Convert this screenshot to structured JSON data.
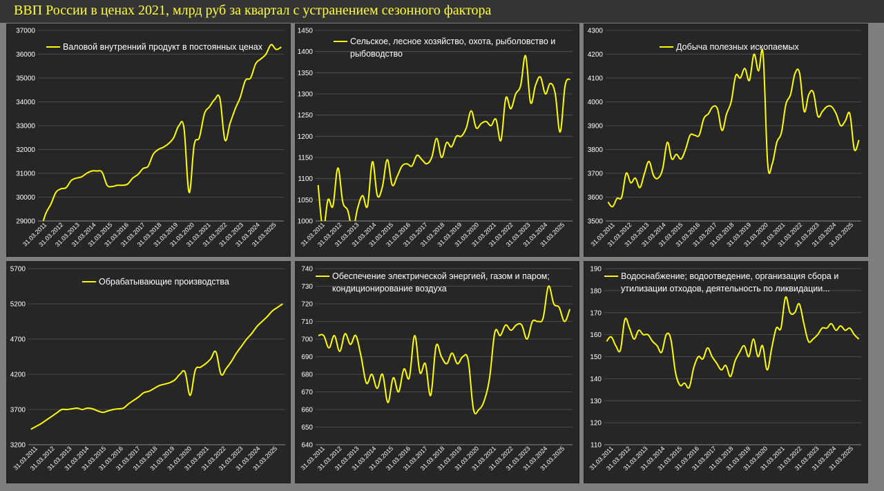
{
  "page": {
    "title": "ВВП России в ценах 2021, млрд руб за квартал с устранением сезонного фактора"
  },
  "colors": {
    "line": "#ffff00",
    "plot_bg": "#262626",
    "panel_bg": "#262626",
    "text": "#ffffff",
    "grid": "#595959",
    "page_bg": "#7f7f7f"
  },
  "x_ticks": [
    "31.03.2011",
    "31.03.2012",
    "31.03.2013",
    "31.03.2014",
    "31.03.2015",
    "31.03.2016",
    "31.03.2017",
    "31.03.2018",
    "31.03.2019",
    "31.03.2020",
    "31.03.2021",
    "31.03.2022",
    "31.03.2023",
    "31.03.2024",
    "31.03.2025"
  ],
  "chart_data": [
    {
      "type": "line",
      "legend": [
        "Валовой внутренний продукт в постоянных ценах"
      ],
      "ylim": [
        29000,
        37000
      ],
      "yticks": [
        29000,
        30000,
        31000,
        32000,
        33000,
        34000,
        35000,
        36000,
        37000
      ],
      "series": [
        {
          "values": [
            28600,
            29300,
            29700,
            30200,
            30350,
            30400,
            30700,
            30800,
            30850,
            31000,
            31100,
            31100,
            31050,
            30500,
            30450,
            30500,
            30500,
            30550,
            30800,
            30950,
            31200,
            31300,
            31800,
            32000,
            32100,
            32250,
            32500,
            33000,
            32900,
            30200,
            32200,
            32500,
            33500,
            33800,
            34100,
            34150,
            32400,
            33100,
            33700,
            34200,
            34900,
            35000,
            35600,
            35800,
            36000,
            36400,
            36200,
            36300
          ]
        }
      ]
    },
    {
      "type": "line",
      "legend": [
        "Сельское, лесное хозяйство, охота, рыболовство и",
        "рыбоводство"
      ],
      "ylim": [
        1000,
        1450
      ],
      "yticks": [
        1000,
        1050,
        1100,
        1150,
        1200,
        1250,
        1300,
        1350,
        1400,
        1450
      ],
      "series": [
        {
          "values": [
            1085,
            980,
            1050,
            1035,
            1125,
            1045,
            1025,
            980,
            1030,
            1060,
            1035,
            1140,
            1060,
            1080,
            1145,
            1085,
            1105,
            1130,
            1135,
            1130,
            1155,
            1145,
            1135,
            1150,
            1195,
            1150,
            1185,
            1175,
            1200,
            1200,
            1220,
            1260,
            1220,
            1230,
            1235,
            1225,
            1240,
            1190,
            1290,
            1265,
            1300,
            1320,
            1390,
            1280,
            1320,
            1340,
            1300,
            1325,
            1300,
            1210,
            1320,
            1335
          ]
        }
      ]
    },
    {
      "type": "line",
      "legend": [
        "Добыча полезных ископаемых"
      ],
      "ylim": [
        3500,
        4300
      ],
      "yticks": [
        3500,
        3600,
        3700,
        3800,
        3900,
        4000,
        4100,
        4200,
        4300
      ],
      "series": [
        {
          "values": [
            3580,
            3560,
            3595,
            3600,
            3700,
            3660,
            3680,
            3640,
            3700,
            3750,
            3690,
            3680,
            3720,
            3830,
            3760,
            3780,
            3760,
            3800,
            3860,
            3860,
            3860,
            3930,
            3950,
            3980,
            3970,
            3880,
            3950,
            4000,
            4110,
            4100,
            4140,
            4090,
            4200,
            4130,
            4200,
            3740,
            3740,
            3830,
            3870,
            3990,
            4030,
            4120,
            4120,
            3960,
            4030,
            4040,
            3940,
            3960,
            3980,
            3980,
            3950,
            3900,
            3920,
            3950,
            3800,
            3840
          ]
        }
      ]
    },
    {
      "type": "line",
      "legend": [
        "Обрабатывающие производства"
      ],
      "ylim": [
        3200,
        5700
      ],
      "yticks": [
        3200,
        3700,
        4200,
        4700,
        5200,
        5700
      ],
      "series": [
        {
          "values": [
            3420,
            3460,
            3500,
            3550,
            3600,
            3650,
            3700,
            3700,
            3710,
            3720,
            3700,
            3720,
            3710,
            3680,
            3660,
            3680,
            3700,
            3710,
            3720,
            3780,
            3830,
            3880,
            3940,
            3960,
            4000,
            4040,
            4060,
            4080,
            4120,
            4200,
            4230,
            3900,
            4260,
            4300,
            4350,
            4420,
            4520,
            4200,
            4280,
            4380,
            4500,
            4600,
            4700,
            4780,
            4880,
            4950,
            5020,
            5100,
            5150,
            5200
          ]
        }
      ]
    },
    {
      "type": "line",
      "legend": [
        "Обеспечение электрической энергией, газом и паром;",
        "кондиционирование воздуха"
      ],
      "ylim": [
        640,
        740
      ],
      "yticks": [
        640,
        650,
        660,
        670,
        680,
        690,
        700,
        710,
        720,
        730,
        740
      ],
      "series": [
        {
          "values": [
            702,
            702,
            695,
            702,
            693,
            703,
            697,
            702,
            690,
            675,
            680,
            672,
            680,
            664,
            678,
            670,
            683,
            678,
            702,
            681,
            686,
            668,
            696,
            690,
            686,
            692,
            686,
            690,
            688,
            660,
            660,
            665,
            678,
            704,
            702,
            708,
            705,
            708,
            708,
            700,
            710,
            710,
            712,
            730,
            720,
            718,
            710,
            717
          ]
        }
      ]
    },
    {
      "type": "line",
      "legend": [
        "Водоснабжение; водоотведение, организация сбора и",
        "утилизации отходов, деятельность по ликвидации..."
      ],
      "ylim": [
        110,
        190
      ],
      "yticks": [
        110,
        120,
        130,
        140,
        150,
        160,
        170,
        180,
        190
      ],
      "series": [
        {
          "values": [
            157,
            159,
            155,
            153,
            167,
            163,
            158,
            162,
            160,
            160,
            157,
            155,
            152,
            160,
            158,
            143,
            137,
            138,
            136,
            145,
            150,
            149,
            154,
            150,
            147,
            144,
            146,
            141,
            148,
            152,
            155,
            150,
            158,
            150,
            155,
            144,
            154,
            163,
            163,
            177,
            170,
            170,
            174,
            165,
            157,
            158,
            160,
            163,
            163,
            165,
            162,
            164,
            162,
            163,
            160,
            158
          ]
        }
      ]
    }
  ]
}
